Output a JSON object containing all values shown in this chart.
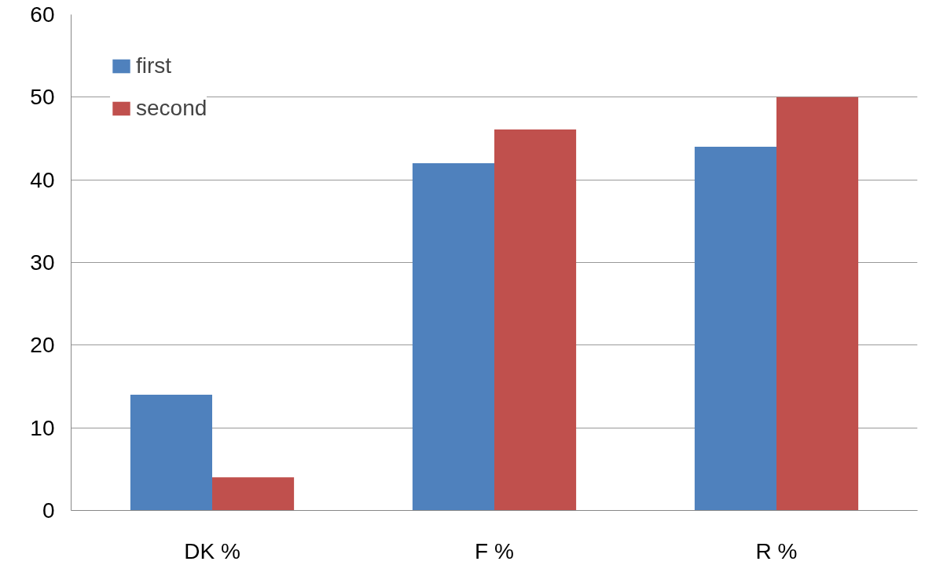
{
  "chart_data": {
    "type": "bar",
    "categories": [
      "DK %",
      "F %",
      "R %"
    ],
    "series": [
      {
        "name": "first",
        "color": "#4f81bd",
        "values": [
          14,
          42,
          44
        ]
      },
      {
        "name": "second",
        "color": "#c0504d",
        "values": [
          4,
          46.1,
          50
        ]
      }
    ],
    "ylim": [
      0,
      60
    ],
    "yticks": [
      0,
      10,
      20,
      30,
      40,
      50,
      60
    ],
    "grid": "y",
    "legend": "top left"
  }
}
